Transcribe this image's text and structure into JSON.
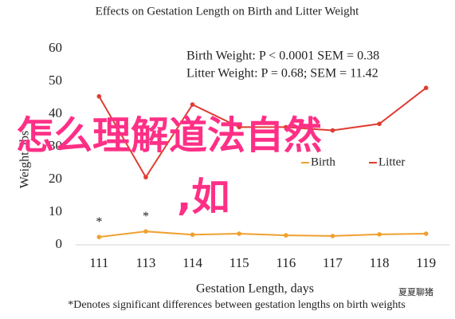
{
  "chart_data": {
    "type": "line",
    "title": "Effects on Gestation Length on Birth and Litter Weight",
    "x_label": "Gestation Length, days",
    "y_label": "Weight, lbs",
    "categories": [
      "111",
      "113",
      "114",
      "115",
      "116",
      "117",
      "118",
      "119"
    ],
    "series": [
      {
        "name": "Birth",
        "color": "#f0a030",
        "values": [
          2.4,
          4.1,
          3.1,
          3.4,
          2.9,
          2.7,
          3.2,
          3.4
        ]
      },
      {
        "name": "Litter",
        "color": "#e03c31",
        "values": [
          45.4,
          20.7,
          42.9,
          36,
          36,
          35,
          37,
          48
        ]
      }
    ],
    "significance": [
      "*",
      "*",
      null,
      null,
      null,
      null,
      null,
      null
    ],
    "stats": [
      "Birth Weight: P < 0.0001 SEM = 0.38",
      "Litter Weight: P = 0.68; SEM = 11.42"
    ],
    "footnote": "*Denotes significant differences between gestation lengths on birth weights",
    "ylim": [
      0,
      60
    ],
    "yticks": [
      0,
      10,
      20,
      30,
      40,
      50,
      60
    ],
    "grid": false,
    "legend": "lower-right",
    "overlay": [
      "怎么理解道法自然",
      ",如"
    ],
    "watermark": "夏夏聊猪"
  }
}
